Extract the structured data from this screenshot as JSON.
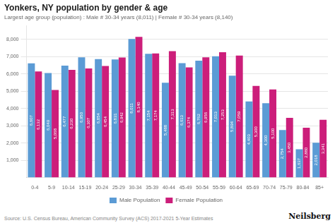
{
  "chart_data": {
    "type": "bar",
    "title": "Yonkers, NY population by gender & age",
    "subtitle": "Largest age group (population) : Male # 30-34 years (8,011) | Female # 30-34 years (8,140)",
    "annotations": [
      "Source: U.S. Census Bureau, American Community Survey (ACS) 2017-2021 5-Year Estimates",
      "Neilsberg"
    ],
    "categories": [
      "0-4",
      "5-9",
      "10-14",
      "15-19",
      "20-24",
      "25-29",
      "30-34",
      "35-39",
      "40-44",
      "45-49",
      "50-54",
      "55-59",
      "60-64",
      "65-69",
      "70-74",
      "75-79",
      "80-84",
      "85+"
    ],
    "series": [
      {
        "name": "Male Population",
        "color": "#5b9bd5",
        "values": [
          6607,
          6049,
          6477,
          6950,
          6854,
          6831,
          8011,
          7154,
          5488,
          6613,
          6762,
          7013,
          5894,
          4403,
          4300,
          2754,
          1637,
          2018
        ],
        "value_labels": [
          "6,607",
          "6,049",
          "6,477",
          "6,950",
          "6,854",
          "6,831",
          "8,011",
          "7,154",
          "5,488",
          "6,613",
          "6,762",
          "7,013",
          "5,894",
          "4,403",
          "4,300",
          "2,754",
          "1,637",
          "2,018"
        ]
      },
      {
        "name": "Female Population",
        "color": "#cc1e7a",
        "values": [
          6132,
          5068,
          6230,
          6307,
          6454,
          6942,
          8140,
          7174,
          7313,
          6374,
          6956,
          7253,
          7059,
          5300,
          5100,
          3450,
          2880,
          3341
        ],
        "value_labels": [
          "6,132",
          "5,068",
          "6,230",
          "6,307",
          "6,454",
          "6,942",
          "8,140",
          "7,174",
          "7,313",
          "6,374",
          "6,956",
          "7,253",
          "7,059",
          "5,300",
          "5,100",
          "3,450",
          "2,880",
          "3,341"
        ]
      }
    ],
    "ylim": [
      0,
      8800
    ],
    "yticks": [
      {
        "value": 1000,
        "label": "1,000"
      },
      {
        "value": 2000,
        "label": "2,000"
      },
      {
        "value": 3000,
        "label": "3,000"
      },
      {
        "value": 4000,
        "label": "4,000"
      },
      {
        "value": 5000,
        "label": "5,000"
      },
      {
        "value": 6000,
        "label": "6,000"
      },
      {
        "value": 7000,
        "label": "7,000"
      },
      {
        "value": 8000,
        "label": "8,000"
      }
    ],
    "grid": true,
    "legend": "bottom",
    "data_labels": true
  }
}
